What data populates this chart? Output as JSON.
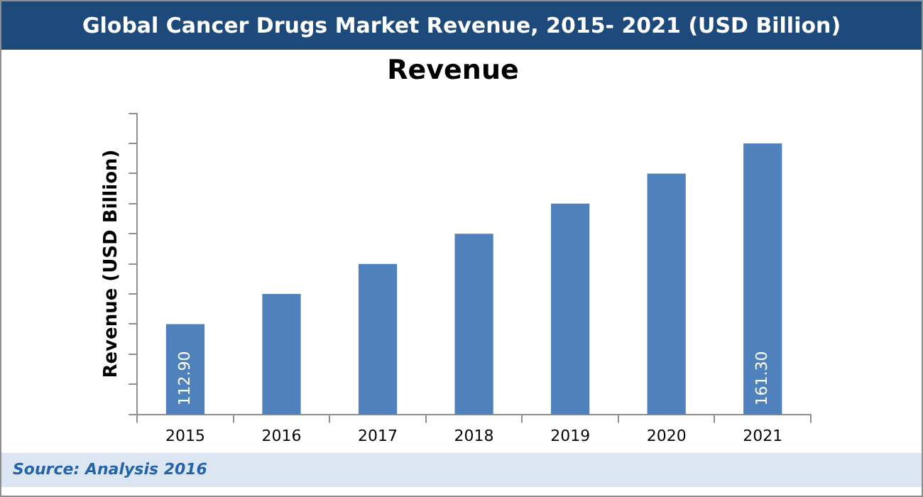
{
  "chart_data": {
    "type": "bar",
    "title": "Global Cancer Drugs Market Revenue, 2015- 2021 (USD Billion)",
    "subtitle": "Revenue",
    "ylabel": "Revenue (USD Billion)",
    "categories": [
      "2015",
      "2016",
      "2017",
      "2018",
      "2019",
      "2020",
      "2021"
    ],
    "values": [
      112.9,
      120.97,
      129.03,
      137.1,
      145.17,
      153.23,
      161.3
    ],
    "ylim": [
      88.7,
      169.37
    ],
    "yticks": [
      {
        "value": 88.7,
        "label": null
      },
      {
        "value": 96.77,
        "label": null
      },
      {
        "value": 104.83,
        "label": null
      },
      {
        "value": 112.9,
        "label": null
      },
      {
        "value": 120.97,
        "label": null
      },
      {
        "value": 129.03,
        "label": null
      },
      {
        "value": 137.1,
        "label": null
      },
      {
        "value": 145.17,
        "label": null
      },
      {
        "value": 153.23,
        "label": null
      },
      {
        "value": 161.3,
        "label": null
      },
      {
        "value": 169.37,
        "label": null
      }
    ],
    "value_labels": [
      "112.90",
      null,
      null,
      null,
      null,
      null,
      "161.30"
    ],
    "color": "#4f81bd",
    "tick_labels": "x",
    "grid": false,
    "legend": false,
    "annotations": [
      "Source: Analysis 2016"
    ]
  }
}
